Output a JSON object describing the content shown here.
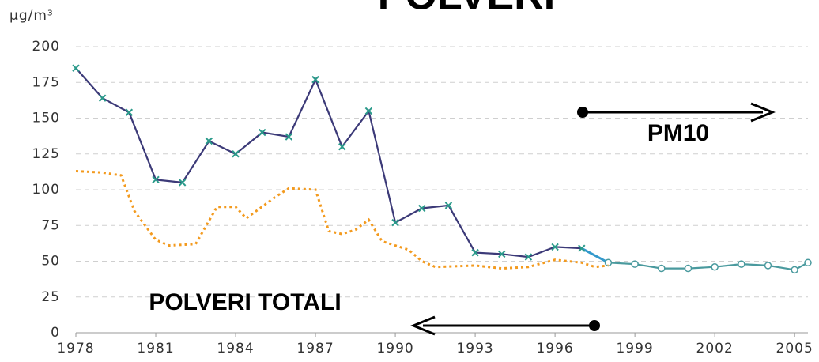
{
  "chart_data": {
    "type": "line",
    "title": "POLVERI",
    "y_label": "µg/m³",
    "xlim": [
      1978,
      2005.5
    ],
    "xticks": [
      1978,
      1981,
      1984,
      1987,
      1990,
      1993,
      1996,
      1999,
      2002,
      2005
    ],
    "ylim": [
      0,
      200
    ],
    "yticks": [
      0,
      25,
      50,
      75,
      100,
      125,
      150,
      175,
      200
    ],
    "grid": true,
    "link_color": "#3399cc",
    "series": [
      {
        "name": "PM10",
        "color": "#3c3a78",
        "marker": "x",
        "style": "solid",
        "x": [
          1978,
          1979,
          1980,
          1981,
          1982,
          1983,
          1984,
          1985,
          1986,
          1987,
          1988,
          1989,
          1990,
          1991,
          1992,
          1993,
          1994,
          1995,
          1996,
          1997
        ],
        "values": [
          185,
          164,
          154,
          107,
          105,
          134,
          125,
          140,
          137,
          177,
          130,
          155,
          77,
          87,
          89,
          56,
          55,
          53,
          60,
          59
        ]
      },
      {
        "color": "#4a9a9e",
        "marker": "circle",
        "style": "solid",
        "x": [
          1998,
          1999,
          2000,
          2001,
          2002,
          2003,
          2004,
          2005,
          2005.5
        ],
        "values": [
          49,
          48,
          45,
          45,
          46,
          48,
          47,
          44,
          49
        ]
      },
      {
        "name": "POLVERI TOTALI",
        "color": "#f39a1e",
        "marker": "none",
        "style": "dotted",
        "x": [
          1978,
          1979,
          1979.7,
          1980.2,
          1981,
          1981.5,
          1982.5,
          1983.3,
          1984,
          1984.4,
          1985.5,
          1986,
          1987,
          1987.5,
          1988,
          1988.5,
          1989,
          1989.5,
          1990.5,
          1991,
          1991.5,
          1993,
          1994,
          1995,
          1996,
          1997,
          1997.5,
          1998
        ],
        "values": [
          113,
          112,
          110,
          85,
          65,
          61,
          62,
          88,
          88,
          80,
          95,
          101,
          100,
          71,
          69,
          72,
          79,
          64,
          58,
          50,
          46,
          47,
          45,
          46,
          51,
          49,
          46,
          47
        ]
      }
    ]
  }
}
